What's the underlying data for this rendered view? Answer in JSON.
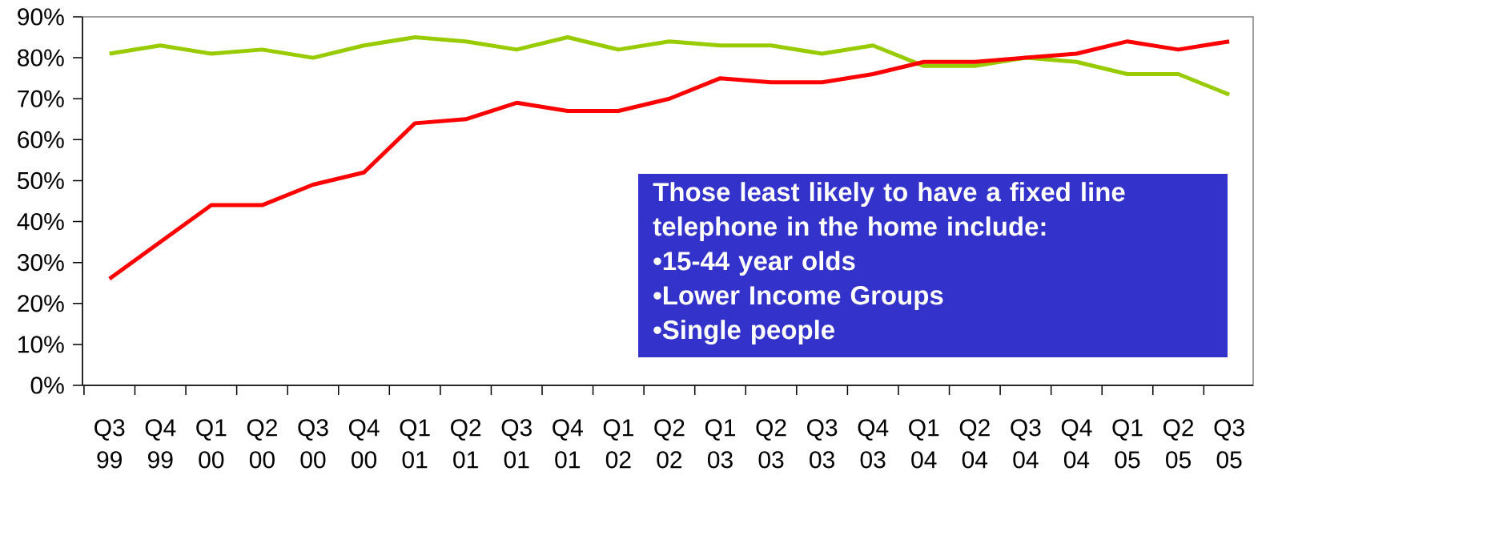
{
  "chart_data": {
    "type": "line",
    "categories": [
      "Q3 99",
      "Q4 99",
      "Q1 00",
      "Q2 00",
      "Q3 00",
      "Q4 00",
      "Q1 01",
      "Q2 01",
      "Q3 01",
      "Q4 01",
      "Q1 02",
      "Q2 02",
      "Q1 03",
      "Q2 03",
      "Q3 03",
      "Q4 03",
      "Q1 04",
      "Q2 04",
      "Q3 04",
      "Q4 04",
      "Q1 05",
      "Q2 05",
      "Q3 05"
    ],
    "series": [
      {
        "color": "#99cc00",
        "values": [
          81,
          83,
          81,
          82,
          80,
          83,
          85,
          84,
          82,
          85,
          82,
          84,
          83,
          83,
          81,
          83,
          78,
          78,
          80,
          79,
          76,
          76,
          71
        ]
      },
      {
        "color": "#ff0000",
        "values": [
          26,
          35,
          44,
          44,
          49,
          52,
          64,
          65,
          69,
          67,
          67,
          70,
          75,
          74,
          74,
          76,
          79,
          79,
          80,
          81,
          84,
          82,
          84
        ]
      }
    ],
    "ylim": [
      0,
      90
    ],
    "yticks": [
      {
        "value": 0,
        "label": "0%"
      },
      {
        "value": 10,
        "label": "10%"
      },
      {
        "value": 20,
        "label": "20%"
      },
      {
        "value": 30,
        "label": "30%"
      },
      {
        "value": 40,
        "label": "40%"
      },
      {
        "value": 50,
        "label": "50%"
      },
      {
        "value": 60,
        "label": "60%"
      },
      {
        "value": 70,
        "label": "70%"
      },
      {
        "value": 80,
        "label": "80%"
      },
      {
        "value": 90,
        "label": "90%"
      }
    ],
    "annotations": [
      "Those least likely to have a fixed line telephone in the home include:",
      "•15-44 year olds",
      "•Lower Income Groups",
      "•Single people"
    ]
  }
}
